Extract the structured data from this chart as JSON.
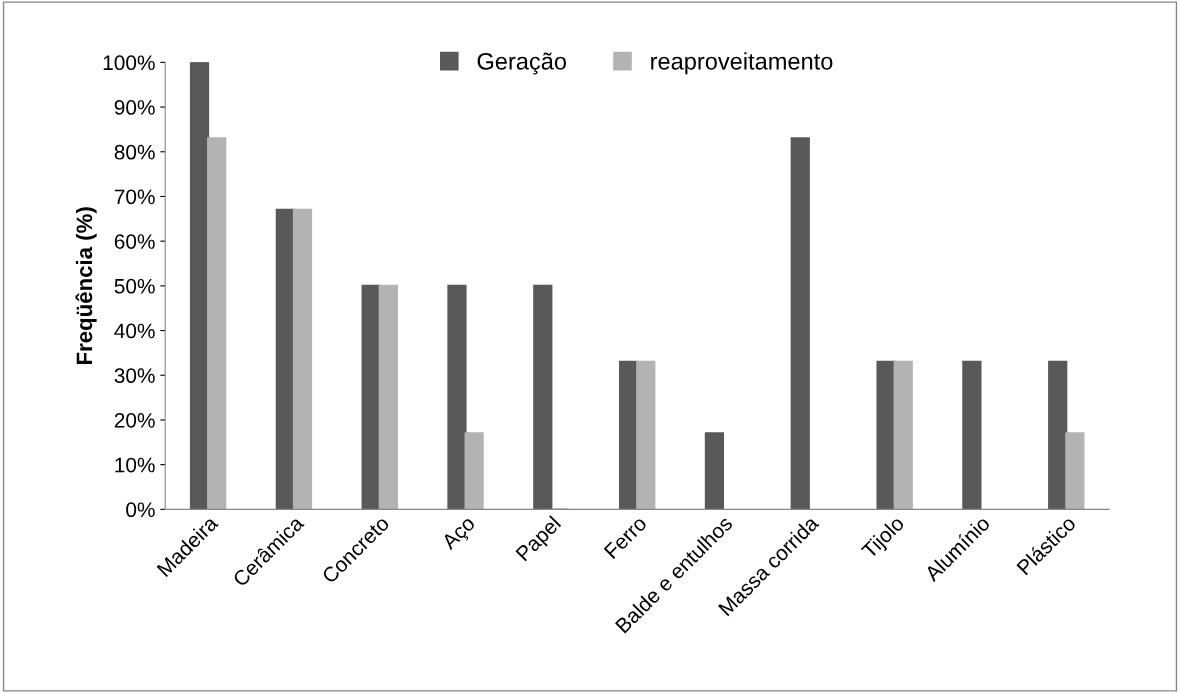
{
  "chart_data": {
    "type": "bar",
    "ylabel": "Freqüência (%)",
    "categories": [
      "Madeira",
      "Cerâmica",
      "Concreto",
      "Aço",
      "Papel",
      "Ferro",
      "Balde e entulhos",
      "Massa corrida",
      "Tijolo",
      "Alumínio",
      "Plástico"
    ],
    "series": [
      {
        "name": "Geração",
        "color": "#595959",
        "values": [
          100,
          67,
          50,
          50,
          50,
          33,
          17,
          83,
          33,
          33,
          33
        ]
      },
      {
        "name": "reaproveitamento",
        "color": "#b3b3b3",
        "values": [
          83,
          67,
          50,
          17,
          0,
          33,
          null,
          null,
          33,
          null,
          17
        ]
      }
    ],
    "ylim": [
      0,
      100
    ],
    "yticks": [
      {
        "value": 0,
        "label": "0%"
      },
      {
        "value": 10,
        "label": "10%"
      },
      {
        "value": 20,
        "label": "20%"
      },
      {
        "value": 30,
        "label": "30%"
      },
      {
        "value": 40,
        "label": "40%"
      },
      {
        "value": 50,
        "label": "50%"
      },
      {
        "value": 60,
        "label": "60%"
      },
      {
        "value": 70,
        "label": "70%"
      },
      {
        "value": 80,
        "label": "80%"
      },
      {
        "value": 90,
        "label": "90%"
      },
      {
        "value": 100,
        "label": "100%"
      }
    ],
    "legend": "top",
    "grid": false
  }
}
